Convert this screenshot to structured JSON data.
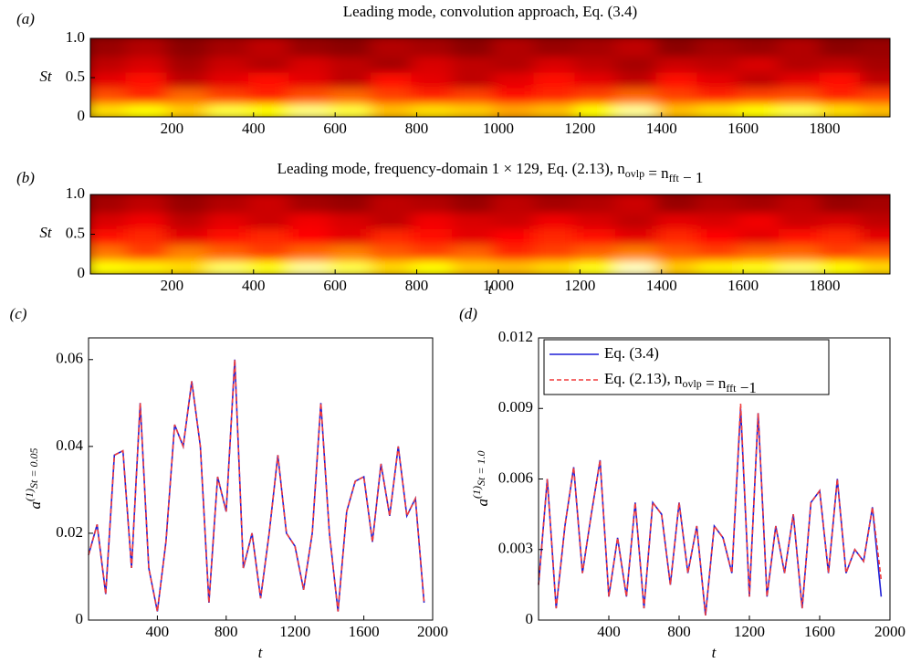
{
  "chart_data": [
    {
      "type": "heatmap",
      "panel": "(a)",
      "title": [
        "Leading mode, convolution approach, Eq. (3.4)"
      ],
      "ylabel": "St",
      "colormap": "hot",
      "xlim": [
        0,
        1960
      ],
      "xticks": [
        200,
        400,
        600,
        800,
        1000,
        1200,
        1400,
        1600,
        1800
      ],
      "ylim": [
        0,
        1
      ],
      "yticks": [
        0,
        {
          "value": 0.5,
          "label": "0.5"
        },
        {
          "value": 1,
          "label": "1.0"
        }
      ],
      "x": [
        50,
        150,
        250,
        350,
        450,
        550,
        650,
        750,
        850,
        950,
        1050,
        1150,
        1250,
        1350,
        1450,
        1550,
        1650,
        1750,
        1850,
        1950
      ],
      "y": [
        0.1,
        0.3,
        0.5,
        0.7,
        0.9
      ],
      "z": [
        [
          0.75,
          0.8,
          0.72,
          0.85,
          0.8,
          0.9,
          0.85,
          0.7,
          0.75,
          0.72,
          0.66,
          0.7,
          0.8,
          0.92,
          0.7,
          0.75,
          0.8,
          0.86,
          0.75,
          0.7
        ],
        [
          0.52,
          0.46,
          0.56,
          0.5,
          0.45,
          0.52,
          0.56,
          0.5,
          0.45,
          0.5,
          0.42,
          0.46,
          0.5,
          0.56,
          0.5,
          0.45,
          0.5,
          0.52,
          0.45,
          0.5
        ],
        [
          0.36,
          0.42,
          0.3,
          0.36,
          0.42,
          0.36,
          0.3,
          0.42,
          0.36,
          0.3,
          0.36,
          0.42,
          0.36,
          0.3,
          0.42,
          0.36,
          0.3,
          0.36,
          0.42,
          0.3
        ],
        [
          0.3,
          0.34,
          0.26,
          0.32,
          0.28,
          0.34,
          0.3,
          0.26,
          0.34,
          0.3,
          0.28,
          0.34,
          0.3,
          0.26,
          0.32,
          0.3,
          0.34,
          0.28,
          0.3,
          0.26
        ],
        [
          0.24,
          0.28,
          0.22,
          0.26,
          0.3,
          0.24,
          0.22,
          0.28,
          0.26,
          0.22,
          0.28,
          0.24,
          0.26,
          0.3,
          0.22,
          0.26,
          0.24,
          0.28,
          0.22,
          0.24
        ]
      ]
    },
    {
      "type": "heatmap",
      "panel": "(b)",
      "title": [
        "Leading mode, frequency-domain 1 × 129, Eq. (2.13), n",
        {
          "sub": "ovlp"
        },
        " = n",
        {
          "sub": "fft"
        },
        " − 1"
      ],
      "ylabel": "St",
      "xlabel": "t",
      "colormap": "hot",
      "xlim": [
        0,
        1960
      ],
      "xticks": [
        200,
        400,
        600,
        800,
        1000,
        1200,
        1400,
        1600,
        1800
      ],
      "ylim": [
        0,
        1
      ],
      "yticks": [
        0,
        {
          "value": 0.5,
          "label": "0.5"
        },
        {
          "value": 1,
          "label": "1.0"
        }
      ],
      "x": [
        50,
        150,
        250,
        350,
        450,
        550,
        650,
        750,
        850,
        950,
        1050,
        1150,
        1250,
        1350,
        1450,
        1550,
        1650,
        1750,
        1850,
        1950
      ],
      "y": [
        0.1,
        0.3,
        0.5,
        0.7,
        0.9
      ],
      "z": [
        [
          0.8,
          0.78,
          0.75,
          0.88,
          0.82,
          0.92,
          0.86,
          0.74,
          0.8,
          0.72,
          0.7,
          0.74,
          0.82,
          0.95,
          0.72,
          0.78,
          0.82,
          0.88,
          0.8,
          0.74
        ],
        [
          0.58,
          0.5,
          0.6,
          0.55,
          0.5,
          0.56,
          0.6,
          0.54,
          0.5,
          0.55,
          0.46,
          0.5,
          0.55,
          0.6,
          0.54,
          0.5,
          0.55,
          0.56,
          0.5,
          0.54
        ],
        [
          0.42,
          0.46,
          0.36,
          0.42,
          0.46,
          0.4,
          0.36,
          0.46,
          0.42,
          0.36,
          0.4,
          0.46,
          0.42,
          0.36,
          0.46,
          0.4,
          0.36,
          0.42,
          0.46,
          0.36
        ],
        [
          0.34,
          0.38,
          0.3,
          0.36,
          0.32,
          0.38,
          0.34,
          0.3,
          0.38,
          0.34,
          0.32,
          0.38,
          0.34,
          0.3,
          0.36,
          0.34,
          0.38,
          0.32,
          0.34,
          0.3
        ],
        [
          0.26,
          0.3,
          0.24,
          0.28,
          0.32,
          0.26,
          0.24,
          0.3,
          0.28,
          0.24,
          0.3,
          0.26,
          0.28,
          0.32,
          0.24,
          0.28,
          0.26,
          0.3,
          0.24,
          0.26
        ]
      ]
    },
    {
      "type": "line",
      "panel": "(c)",
      "xlabel": "t",
      "ylabel": [
        "a",
        {
          "sup": "(1)"
        },
        {
          "sub": "St = 0.05"
        }
      ],
      "xlim": [
        0,
        2000
      ],
      "xticks": [
        400,
        800,
        1200,
        1600,
        2000
      ],
      "ylim": [
        0,
        0.065
      ],
      "yticks": [
        0,
        0.02,
        0.04,
        0.06
      ],
      "x": [
        0,
        50,
        100,
        150,
        200,
        250,
        300,
        350,
        400,
        450,
        500,
        550,
        600,
        650,
        700,
        750,
        800,
        850,
        900,
        950,
        1000,
        1050,
        1100,
        1150,
        1200,
        1250,
        1300,
        1350,
        1400,
        1450,
        1500,
        1550,
        1600,
        1650,
        1700,
        1750,
        1800,
        1850,
        1900,
        1950
      ],
      "series": [
        {
          "color": "#1f1fd6",
          "dash": false,
          "values": [
            0.015,
            0.022,
            0.006,
            0.038,
            0.039,
            0.012,
            0.05,
            0.012,
            0.002,
            0.018,
            0.045,
            0.04,
            0.055,
            0.04,
            0.004,
            0.033,
            0.025,
            0.06,
            0.012,
            0.02,
            0.005,
            0.02,
            0.038,
            0.02,
            0.017,
            0.007,
            0.02,
            0.05,
            0.02,
            0.002,
            0.025,
            0.032,
            0.033,
            0.018,
            0.036,
            0.024,
            0.04,
            0.024,
            0.028,
            0.004
          ]
        },
        {
          "color": "#f03c3c",
          "dash": true,
          "values": [
            0.015,
            0.022,
            0.006,
            0.038,
            0.039,
            0.012,
            0.05,
            0.012,
            0.002,
            0.018,
            0.045,
            0.04,
            0.055,
            0.04,
            0.004,
            0.033,
            0.025,
            0.06,
            0.012,
            0.02,
            0.005,
            0.02,
            0.038,
            0.02,
            0.017,
            0.007,
            0.02,
            0.05,
            0.02,
            0.002,
            0.025,
            0.032,
            0.033,
            0.018,
            0.036,
            0.024,
            0.04,
            0.024,
            0.028,
            0.004
          ]
        }
      ]
    },
    {
      "type": "line",
      "panel": "(d)",
      "xlabel": "t",
      "ylabel": [
        "a",
        {
          "sup": "(1)"
        },
        {
          "sub": "St = 1.0"
        }
      ],
      "legend": "upper left",
      "xlim": [
        0,
        2000
      ],
      "xticks": [
        400,
        800,
        1200,
        1600,
        2000
      ],
      "ylim": [
        0,
        0.012
      ],
      "yticks": [
        0,
        0.003,
        0.006,
        0.009,
        0.012
      ],
      "x": [
        0,
        50,
        100,
        150,
        200,
        250,
        300,
        350,
        400,
        450,
        500,
        550,
        600,
        650,
        700,
        750,
        800,
        850,
        900,
        950,
        1000,
        1050,
        1100,
        1150,
        1200,
        1250,
        1300,
        1350,
        1400,
        1450,
        1500,
        1550,
        1600,
        1650,
        1700,
        1750,
        1800,
        1850,
        1900,
        1950
      ],
      "series": [
        {
          "name": [
            "Eq. (3.4)"
          ],
          "color": "#1f1fd6",
          "dash": false,
          "values": [
            0.0015,
            0.006,
            0.0005,
            0.004,
            0.0065,
            0.002,
            0.0045,
            0.0068,
            0.001,
            0.0035,
            0.001,
            0.005,
            0.0005,
            0.005,
            0.0045,
            0.0015,
            0.005,
            0.002,
            0.004,
            0.0002,
            0.004,
            0.0035,
            0.002,
            0.009,
            0.001,
            0.0088,
            0.001,
            0.004,
            0.002,
            0.0045,
            0.0005,
            0.005,
            0.0055,
            0.002,
            0.006,
            0.002,
            0.003,
            0.0025,
            0.0048,
            0.001
          ]
        },
        {
          "name": [
            "Eq. (2.13), n",
            {
              "sub": "ovlp"
            },
            " = n",
            {
              "sub": "fft"
            },
            " −1"
          ],
          "color": "#f03c3c",
          "dash": true,
          "values": [
            0.0015,
            0.006,
            0.0005,
            0.004,
            0.0065,
            0.002,
            0.0045,
            0.0068,
            0.001,
            0.0035,
            0.001,
            0.005,
            0.0005,
            0.005,
            0.0045,
            0.0015,
            0.005,
            0.002,
            0.004,
            0.0002,
            0.004,
            0.0035,
            0.002,
            0.0092,
            0.001,
            0.0088,
            0.001,
            0.004,
            0.002,
            0.0045,
            0.0005,
            0.005,
            0.0055,
            0.002,
            0.006,
            0.002,
            0.003,
            0.0025,
            0.0048,
            0.0017
          ]
        }
      ]
    }
  ]
}
